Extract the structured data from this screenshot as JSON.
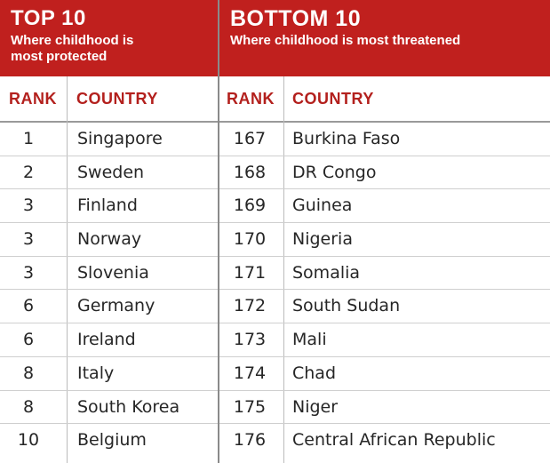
{
  "top": {
    "title": "TOP 10",
    "subtitle_line1": "Where childhood is",
    "subtitle_line2": "most protected",
    "col_rank": "RANK",
    "col_country": "COUNTRY",
    "rows": [
      {
        "rank": "1",
        "country": "Singapore"
      },
      {
        "rank": "2",
        "country": "Sweden"
      },
      {
        "rank": "3",
        "country": "Finland"
      },
      {
        "rank": "3",
        "country": "Norway"
      },
      {
        "rank": "3",
        "country": "Slovenia"
      },
      {
        "rank": "6",
        "country": "Germany"
      },
      {
        "rank": "6",
        "country": "Ireland"
      },
      {
        "rank": "8",
        "country": "Italy"
      },
      {
        "rank": "8",
        "country": "South Korea"
      },
      {
        "rank": "10",
        "country": "Belgium"
      }
    ]
  },
  "bottom": {
    "title": "BOTTOM 10",
    "subtitle_line1": "Where childhood is most threatened",
    "col_rank": "RANK",
    "col_country": "COUNTRY",
    "rows": [
      {
        "rank": "167",
        "country": "Burkina Faso"
      },
      {
        "rank": "168",
        "country": "DR Congo"
      },
      {
        "rank": "169",
        "country": "Guinea"
      },
      {
        "rank": "170",
        "country": "Nigeria"
      },
      {
        "rank": "171",
        "country": "Somalia"
      },
      {
        "rank": "172",
        "country": "South Sudan"
      },
      {
        "rank": "173",
        "country": "Mali"
      },
      {
        "rank": "174",
        "country": "Chad"
      },
      {
        "rank": "175",
        "country": "Niger"
      },
      {
        "rank": "176",
        "country": "Central African Republic"
      }
    ]
  },
  "colors": {
    "header_bg": "#c0201e",
    "column_label": "#b3201d"
  }
}
